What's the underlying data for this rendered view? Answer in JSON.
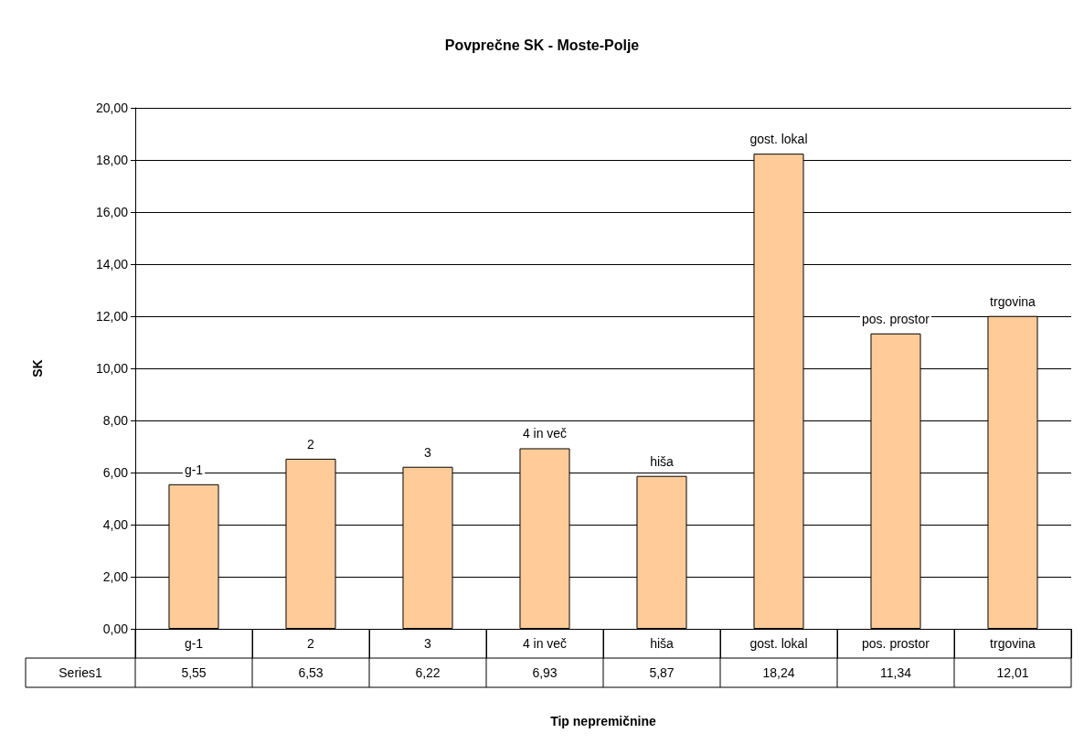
{
  "chart_data": {
    "type": "bar",
    "title": "Povprečne SK - Moste-Polje",
    "xlabel": "Tip nepremičnine",
    "ylabel": "SK",
    "categories": [
      "g-1",
      "2",
      "3",
      "4 in več",
      "hiša",
      "gost. lokal",
      "pos. prostor",
      "trgovina"
    ],
    "series": [
      {
        "name": "Series1",
        "color": "#ffcc99",
        "values": [
          5.55,
          6.53,
          6.22,
          6.93,
          5.87,
          18.24,
          11.34,
          12.01
        ],
        "value_labels": [
          "5,55",
          "6,53",
          "6,22",
          "6,93",
          "5,87",
          "18,24",
          "11,34",
          "12,01"
        ]
      }
    ],
    "ylim": [
      0,
      20
    ],
    "yticks": [
      {
        "value": 0,
        "label": "0,00"
      },
      {
        "value": 2,
        "label": "2,00"
      },
      {
        "value": 4,
        "label": "4,00"
      },
      {
        "value": 6,
        "label": "6,00"
      },
      {
        "value": 8,
        "label": "8,00"
      },
      {
        "value": 10,
        "label": "10,00"
      },
      {
        "value": 12,
        "label": "12,00"
      },
      {
        "value": 14,
        "label": "14,00"
      },
      {
        "value": 16,
        "label": "16,00"
      },
      {
        "value": 18,
        "label": "18,00"
      },
      {
        "value": 20,
        "label": "20,00"
      }
    ],
    "grid": "y",
    "legend": false
  }
}
